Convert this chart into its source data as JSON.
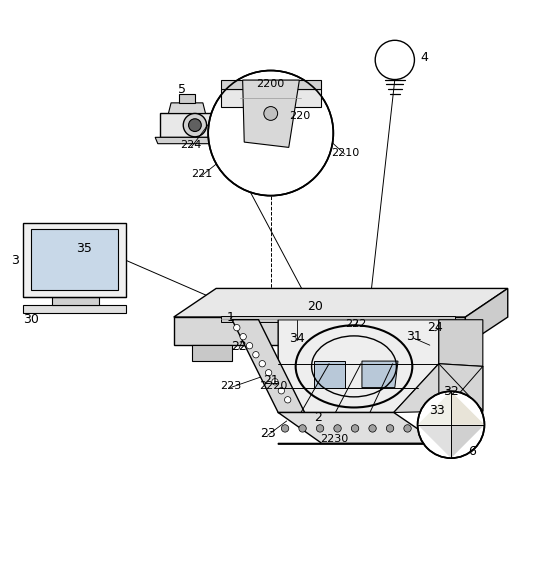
{
  "background_color": "#ffffff",
  "line_color": "#000000",
  "figsize": [
    5.33,
    5.79
  ],
  "dpi": 100
}
